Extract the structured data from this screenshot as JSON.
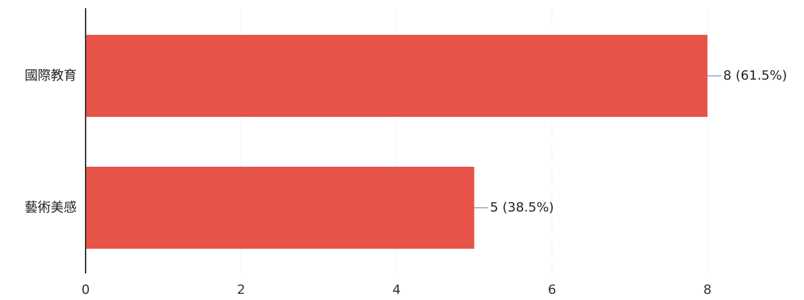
{
  "chart_data": {
    "type": "bar",
    "orientation": "horizontal",
    "categories": [
      "國際教育",
      "藝術美感"
    ],
    "values": [
      8,
      5
    ],
    "data_labels": [
      "8 (61.5%)",
      "5 (38.5%)"
    ],
    "xlim": [
      0,
      8
    ],
    "x_ticks": [
      0,
      2,
      4,
      6,
      8
    ],
    "x_tick_labels": [
      "0",
      "2",
      "4",
      "6",
      "8"
    ],
    "grid": true,
    "bar_color": "#e8534a"
  }
}
